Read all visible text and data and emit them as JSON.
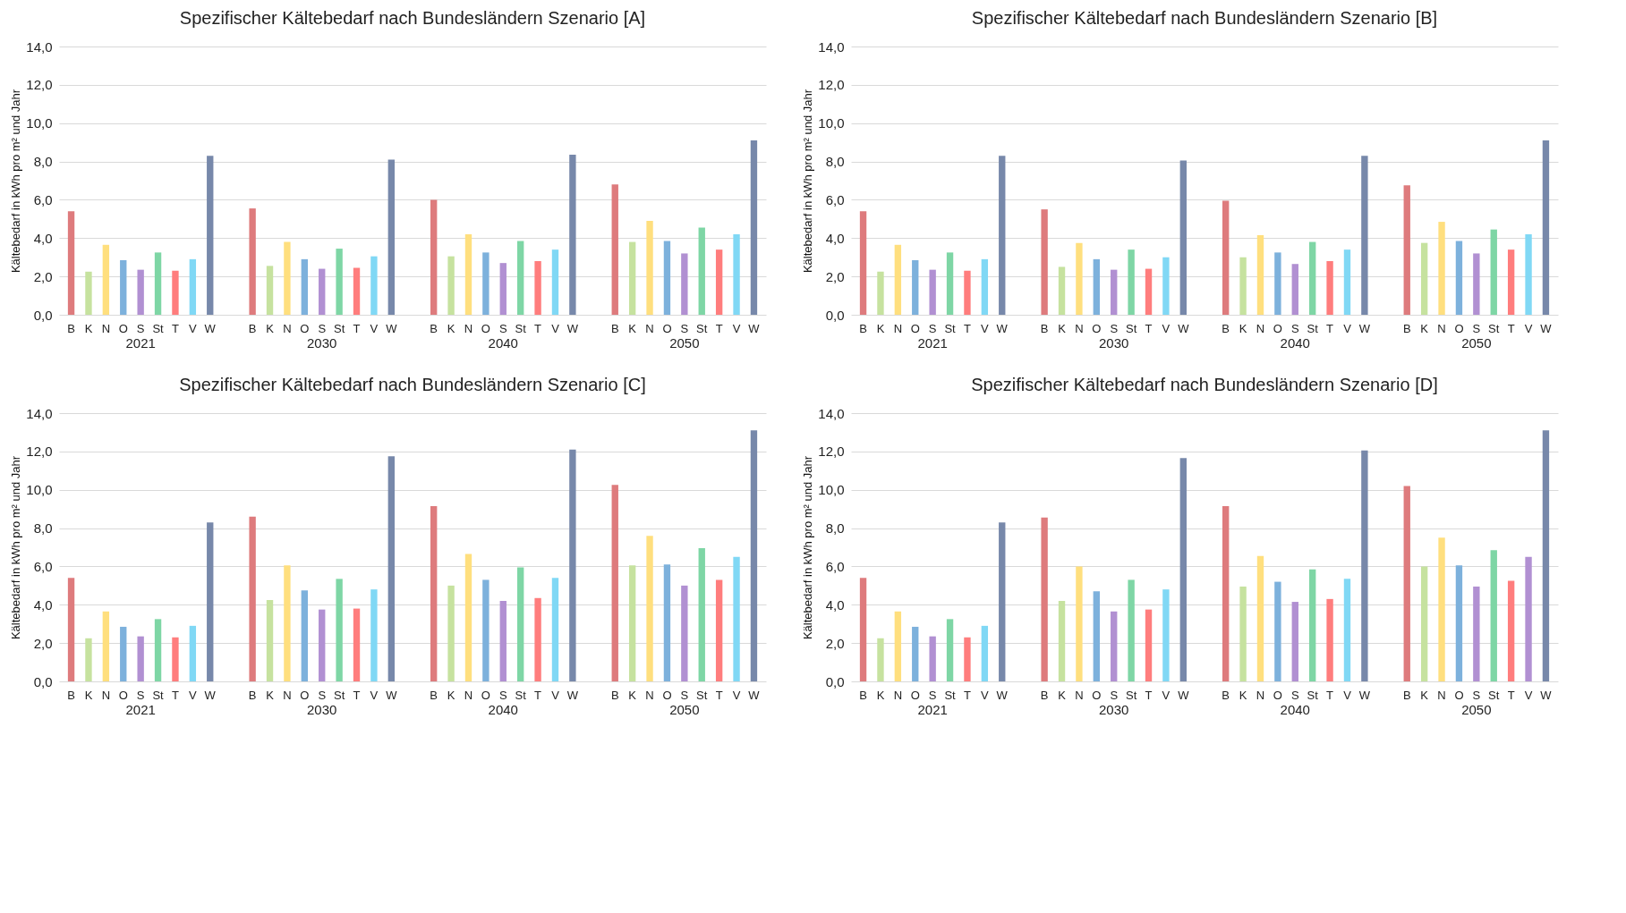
{
  "chart_data": [
    {
      "type": "bar",
      "title": "Spezifischer Kältebedarf nach Bundesländern Szenario [A]",
      "ylabel": "Kältebedarf in kWh pro m² und Jahr",
      "categories": [
        "2021",
        "2030",
        "2040",
        "2050"
      ],
      "ylim": [
        0,
        14
      ],
      "yticks": [
        {
          "value": 0,
          "label": "0,0"
        },
        {
          "value": 2,
          "label": "2,0"
        },
        {
          "value": 4,
          "label": "4,0"
        },
        {
          "value": 6,
          "label": "6,0"
        },
        {
          "value": 8,
          "label": "8,0"
        },
        {
          "value": 10,
          "label": "10,0"
        },
        {
          "value": 12,
          "label": "12,0"
        },
        {
          "value": 14,
          "label": "14,0"
        }
      ],
      "grid": "y",
      "legend": false,
      "series": [
        {
          "name": "B",
          "color": "#de7b7d",
          "values": [
            5.4,
            5.55,
            6.0,
            6.8
          ]
        },
        {
          "name": "K",
          "color": "#c6e29f",
          "values": [
            2.25,
            2.55,
            3.05,
            3.8
          ]
        },
        {
          "name": "N",
          "color": "#ffdf7e",
          "values": [
            3.65,
            3.8,
            4.2,
            4.9
          ]
        },
        {
          "name": "O",
          "color": "#7db1dc",
          "values": [
            2.85,
            2.9,
            3.25,
            3.85
          ]
        },
        {
          "name": "S",
          "color": "#b190d2",
          "values": [
            2.35,
            2.4,
            2.7,
            3.2
          ]
        },
        {
          "name": "St",
          "color": "#7ed6a5",
          "values": [
            3.25,
            3.45,
            3.85,
            4.55
          ]
        },
        {
          "name": "T",
          "color": "#ff7d7d",
          "values": [
            2.3,
            2.45,
            2.8,
            3.4
          ]
        },
        {
          "name": "V",
          "color": "#80d8f5",
          "values": [
            2.9,
            3.05,
            3.4,
            4.2
          ]
        },
        {
          "name": "W",
          "color": "#7788aa",
          "values": [
            8.3,
            8.1,
            8.35,
            9.1
          ]
        }
      ]
    },
    {
      "type": "bar",
      "title": "Spezifischer Kältebedarf nach Bundesländern Szenario [B]",
      "ylabel": "Kältebedarf in kWh pro m² und Jahr",
      "categories": [
        "2021",
        "2030",
        "2040",
        "2050"
      ],
      "ylim": [
        0,
        14
      ],
      "yticks": [
        {
          "value": 0,
          "label": "0,0"
        },
        {
          "value": 2,
          "label": "2,0"
        },
        {
          "value": 4,
          "label": "4,0"
        },
        {
          "value": 6,
          "label": "6,0"
        },
        {
          "value": 8,
          "label": "8,0"
        },
        {
          "value": 10,
          "label": "10,0"
        },
        {
          "value": 12,
          "label": "12,0"
        },
        {
          "value": 14,
          "label": "14,0"
        }
      ],
      "grid": "y",
      "legend": false,
      "series": [
        {
          "name": "B",
          "color": "#de7b7d",
          "values": [
            5.4,
            5.5,
            5.95,
            6.75
          ]
        },
        {
          "name": "K",
          "color": "#c6e29f",
          "values": [
            2.25,
            2.5,
            3.0,
            3.75
          ]
        },
        {
          "name": "N",
          "color": "#ffdf7e",
          "values": [
            3.65,
            3.75,
            4.15,
            4.85
          ]
        },
        {
          "name": "O",
          "color": "#7db1dc",
          "values": [
            2.85,
            2.9,
            3.25,
            3.85
          ]
        },
        {
          "name": "S",
          "color": "#b190d2",
          "values": [
            2.35,
            2.35,
            2.65,
            3.2
          ]
        },
        {
          "name": "St",
          "color": "#7ed6a5",
          "values": [
            3.25,
            3.4,
            3.8,
            4.45
          ]
        },
        {
          "name": "T",
          "color": "#ff7d7d",
          "values": [
            2.3,
            2.4,
            2.8,
            3.4
          ]
        },
        {
          "name": "V",
          "color": "#80d8f5",
          "values": [
            2.9,
            3.0,
            3.4,
            4.2
          ]
        },
        {
          "name": "W",
          "color": "#7788aa",
          "values": [
            8.3,
            8.05,
            8.3,
            9.1
          ]
        }
      ]
    },
    {
      "type": "bar",
      "title": "Spezifischer Kältebedarf nach Bundesländern Szenario [C]",
      "ylabel": "Kältebedarf in kWh pro m² und Jahr",
      "categories": [
        "2021",
        "2030",
        "2040",
        "2050"
      ],
      "ylim": [
        0,
        14
      ],
      "yticks": [
        {
          "value": 0,
          "label": "0,0"
        },
        {
          "value": 2,
          "label": "2,0"
        },
        {
          "value": 4,
          "label": "4,0"
        },
        {
          "value": 6,
          "label": "6,0"
        },
        {
          "value": 8,
          "label": "8,0"
        },
        {
          "value": 10,
          "label": "10,0"
        },
        {
          "value": 12,
          "label": "12,0"
        },
        {
          "value": 14,
          "label": "14,0"
        }
      ],
      "grid": "y",
      "legend": false,
      "series": [
        {
          "name": "B",
          "color": "#de7b7d",
          "values": [
            5.4,
            8.6,
            9.15,
            10.25
          ]
        },
        {
          "name": "K",
          "color": "#c6e29f",
          "values": [
            2.25,
            4.25,
            5.0,
            6.05
          ]
        },
        {
          "name": "N",
          "color": "#ffdf7e",
          "values": [
            3.65,
            6.05,
            6.65,
            7.6
          ]
        },
        {
          "name": "O",
          "color": "#7db1dc",
          "values": [
            2.85,
            4.75,
            5.3,
            6.1
          ]
        },
        {
          "name": "S",
          "color": "#b190d2",
          "values": [
            2.35,
            3.75,
            4.2,
            5.0
          ]
        },
        {
          "name": "St",
          "color": "#7ed6a5",
          "values": [
            3.25,
            5.35,
            5.95,
            6.95
          ]
        },
        {
          "name": "T",
          "color": "#ff7d7d",
          "values": [
            2.3,
            3.8,
            4.35,
            5.3
          ]
        },
        {
          "name": "V",
          "color": "#80d8f5",
          "values": [
            2.9,
            4.8,
            5.4,
            6.5
          ]
        },
        {
          "name": "W",
          "color": "#7788aa",
          "values": [
            8.3,
            11.75,
            12.1,
            13.1
          ]
        }
      ]
    },
    {
      "type": "bar",
      "title": "Spezifischer Kältebedarf nach Bundesländern Szenario [D]",
      "ylabel": "Kältebedarf in kWh pro m² und Jahr",
      "categories": [
        "2021",
        "2030",
        "2040",
        "2050"
      ],
      "ylim": [
        0,
        14
      ],
      "yticks": [
        {
          "value": 0,
          "label": "0,0"
        },
        {
          "value": 2,
          "label": "2,0"
        },
        {
          "value": 4,
          "label": "4,0"
        },
        {
          "value": 6,
          "label": "6,0"
        },
        {
          "value": 8,
          "label": "8,0"
        },
        {
          "value": 10,
          "label": "10,0"
        },
        {
          "value": 12,
          "label": "12,0"
        },
        {
          "value": 14,
          "label": "14,0"
        }
      ],
      "grid": "y",
      "legend": false,
      "series": [
        {
          "name": "B",
          "color": "#de7b7d",
          "values": [
            5.4,
            8.55,
            9.15,
            10.2
          ]
        },
        {
          "name": "K",
          "color": "#c6e29f",
          "values": [
            2.25,
            4.2,
            4.95,
            6.0
          ]
        },
        {
          "name": "N",
          "color": "#ffdf7e",
          "values": [
            3.65,
            6.0,
            6.55,
            7.5
          ]
        },
        {
          "name": "O",
          "color": "#7db1dc",
          "values": [
            2.85,
            4.7,
            5.2,
            6.05
          ]
        },
        {
          "name": "S",
          "color": "#b190d2",
          "values": [
            2.35,
            3.65,
            4.15,
            4.95
          ]
        },
        {
          "name": "St",
          "color": "#7ed6a5",
          "values": [
            3.25,
            5.3,
            5.85,
            6.85
          ]
        },
        {
          "name": "T",
          "color": "#ff7d7d",
          "values": [
            2.3,
            3.75,
            4.3,
            5.25
          ]
        },
        {
          "name": "V",
          "colors": [
            "#80d8f5",
            "#80d8f5",
            "#80d8f5",
            "#b190d2"
          ],
          "values": [
            2.9,
            4.8,
            5.35,
            6.5
          ]
        },
        {
          "name": "W",
          "color": "#7788aa",
          "values": [
            8.3,
            11.65,
            12.05,
            13.1
          ]
        }
      ]
    }
  ]
}
